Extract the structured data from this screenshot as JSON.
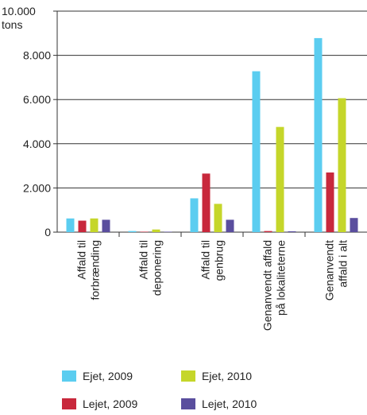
{
  "chart_data": {
    "type": "bar",
    "ylabel": "tons",
    "ylim": [
      0,
      10000
    ],
    "y_ticks": [
      0,
      2000,
      4000,
      6000,
      8000,
      10000
    ],
    "y_tick_labels": [
      "0",
      "2.000",
      "4.000",
      "6.000",
      "8.000",
      "10.000"
    ],
    "grid": true,
    "legend_position": "bottom",
    "categories": [
      [
        "Affald til",
        "forbrænding"
      ],
      [
        "Affald til",
        "deponering"
      ],
      [
        "Affald til",
        "genbrug"
      ],
      [
        "Genanvendt affald",
        "på lokaliteterne"
      ],
      [
        "Genanvendt",
        "affald i alt"
      ]
    ],
    "series": [
      {
        "name": "Ejet, 2009",
        "color": "#5bcdf0",
        "values": [
          620,
          50,
          1530,
          7280,
          8780
        ]
      },
      {
        "name": "Lejet, 2009",
        "color": "#c8283c",
        "values": [
          520,
          20,
          2650,
          50,
          2700
        ]
      },
      {
        "name": "Ejet, 2010",
        "color": "#c5d62a",
        "values": [
          620,
          120,
          1280,
          4760,
          6060
        ]
      },
      {
        "name": "Lejet, 2010",
        "color": "#5a4e9e",
        "values": [
          560,
          20,
          560,
          40,
          640
        ]
      }
    ]
  }
}
